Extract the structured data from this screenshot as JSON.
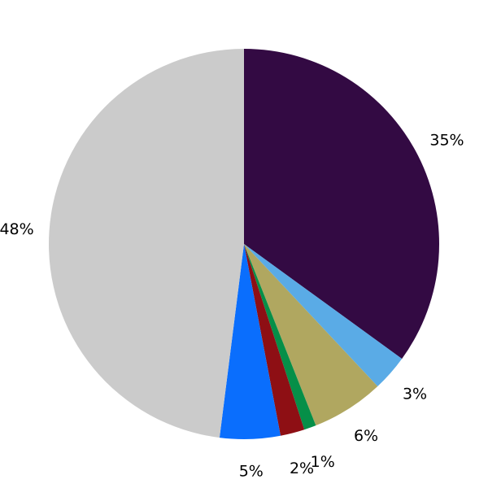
{
  "chart_data": {
    "type": "pie",
    "values": [
      35,
      3,
      6,
      1,
      2,
      5,
      48
    ],
    "value_labels": [
      "35%",
      "3%",
      "6%",
      "1%",
      "2%",
      "5%",
      "48%"
    ],
    "colors": [
      "#330a43",
      "#5aabe6",
      "#b0a760",
      "#068f48",
      "#8e0f14",
      "#0a6efd",
      "#cbcbcb"
    ]
  }
}
